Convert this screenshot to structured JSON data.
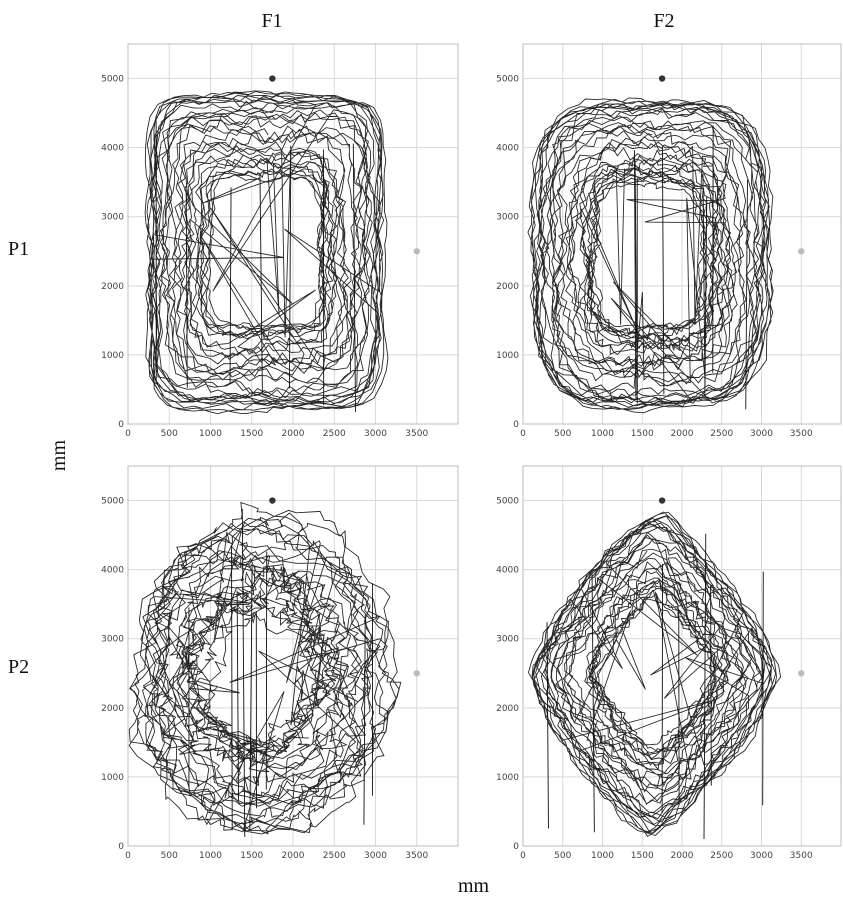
{
  "figure": {
    "columns": [
      "F1",
      "F2"
    ],
    "rows": [
      "P1",
      "P2"
    ],
    "xlabel": "mm",
    "ylabel": "mm"
  },
  "colors": {
    "trajectory": "#111111",
    "grid": "#d9d9d9",
    "dark_marker": "#333333",
    "light_marker": "#bbbbbb"
  },
  "chart_data": [
    {
      "type": "line",
      "panel": "P1-F1",
      "xlim": [
        0,
        4000
      ],
      "ylim": [
        0,
        5500
      ],
      "xticks": [
        0,
        500,
        1000,
        1500,
        2000,
        2500,
        3000,
        3500
      ],
      "yticks": [
        0,
        1000,
        2000,
        3000,
        4000,
        5000
      ],
      "pattern": "rectangular loop",
      "loop_bounds": {
        "x": [
          200,
          3050
        ],
        "y": [
          350,
          4650
        ]
      },
      "markers": [
        {
          "x": 1750,
          "y": 5000,
          "color": "#333333"
        },
        {
          "x": 3500,
          "y": 2500,
          "color": "#bbbbbb"
        }
      ]
    },
    {
      "type": "line",
      "panel": "P1-F2",
      "xlim": [
        0,
        4000
      ],
      "ylim": [
        0,
        5500
      ],
      "xticks": [
        0,
        500,
        1000,
        1500,
        2000,
        2500,
        3000,
        3500
      ],
      "yticks": [
        0,
        1000,
        2000,
        3000,
        4000,
        5000
      ],
      "pattern": "rounded rectangular loop",
      "loop_bounds": {
        "x": [
          150,
          3050
        ],
        "y": [
          300,
          4600
        ]
      },
      "markers": [
        {
          "x": 1750,
          "y": 5000,
          "color": "#333333"
        },
        {
          "x": 3500,
          "y": 2500,
          "color": "#bbbbbb"
        }
      ]
    },
    {
      "type": "line",
      "panel": "P2-F1",
      "xlim": [
        0,
        4000
      ],
      "ylim": [
        0,
        5500
      ],
      "xticks": [
        0,
        500,
        1000,
        1500,
        2000,
        2500,
        3000,
        3500
      ],
      "yticks": [
        0,
        1000,
        2000,
        3000,
        4000,
        5000
      ],
      "pattern": "irregular loop",
      "loop_bounds": {
        "x": [
          100,
          3050
        ],
        "y": [
          300,
          4700
        ]
      },
      "markers": [
        {
          "x": 1750,
          "y": 5000,
          "color": "#333333"
        },
        {
          "x": 3500,
          "y": 2500,
          "color": "#bbbbbb"
        }
      ]
    },
    {
      "type": "line",
      "panel": "P2-F2",
      "xlim": [
        0,
        4000
      ],
      "ylim": [
        0,
        5500
      ],
      "xticks": [
        0,
        500,
        1000,
        1500,
        2000,
        2500,
        3000,
        3500
      ],
      "yticks": [
        0,
        1000,
        2000,
        3000,
        4000,
        5000
      ],
      "pattern": "diamond loop",
      "loop_bounds": {
        "x": [
          100,
          3100
        ],
        "y": [
          300,
          4700
        ]
      },
      "markers": [
        {
          "x": 1750,
          "y": 5000,
          "color": "#333333"
        },
        {
          "x": 3500,
          "y": 2500,
          "color": "#bbbbbb"
        }
      ]
    }
  ]
}
